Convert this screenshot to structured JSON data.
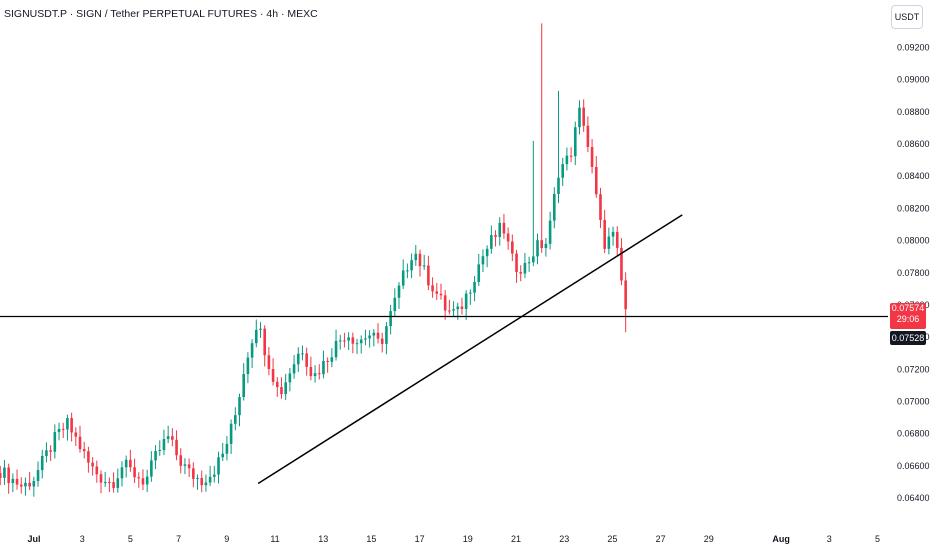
{
  "header": {
    "title": "SIGNUSDT.P · SIGN / Tether PERPETUAL FUTURES · 4h · MEXC",
    "currency": "USDT"
  },
  "price_tags": {
    "current_price": "0.07574",
    "countdown": "29:06",
    "level_price": "0.07528"
  },
  "colors": {
    "up": "#089981",
    "down": "#f23645",
    "line": "#000000",
    "axis_text": "#131722"
  },
  "chart_data": {
    "type": "candlestick",
    "title": "SIGNUSDT.P · SIGN / Tether PERPETUAL FUTURES · 4h · MEXC",
    "y_axis_labels": [
      "0.09200",
      "0.09000",
      "0.08800",
      "0.08600",
      "0.08400",
      "0.08200",
      "0.08000",
      "0.07800",
      "0.07600",
      "0.07400",
      "0.07200",
      "0.07000",
      "0.06800",
      "0.06600",
      "0.06400"
    ],
    "ylim": [
      0.063,
      0.0935
    ],
    "x_axis_labels": [
      {
        "label": "Jul",
        "day": 0
      },
      {
        "label": "3",
        "day": 2
      },
      {
        "label": "5",
        "day": 4
      },
      {
        "label": "7",
        "day": 6
      },
      {
        "label": "9",
        "day": 8
      },
      {
        "label": "11",
        "day": 10
      },
      {
        "label": "13",
        "day": 12
      },
      {
        "label": "15",
        "day": 14
      },
      {
        "label": "17",
        "day": 16
      },
      {
        "label": "19",
        "day": 18
      },
      {
        "label": "21",
        "day": 20
      },
      {
        "label": "23",
        "day": 22
      },
      {
        "label": "25",
        "day": 24
      },
      {
        "label": "27",
        "day": 26
      },
      {
        "label": "29",
        "day": 28
      },
      {
        "label": "Aug",
        "day": 31
      },
      {
        "label": "3",
        "day": 33
      },
      {
        "label": "5",
        "day": 35
      }
    ],
    "candle_anchors": [
      [
        "Jul 1",
        "0.0657"
      ],
      [
        "Jul 1",
        "0.0652"
      ],
      [
        "Jul 2",
        "0.0647"
      ],
      [
        "Jul 2",
        "0.0652"
      ],
      [
        "Jul 2",
        "0.0665"
      ],
      [
        "Jul 3",
        "0.0678"
      ],
      [
        "Jul 3",
        "0.0686"
      ],
      [
        "Jul 3",
        "0.0674"
      ],
      [
        "Jul 4",
        "0.0660"
      ],
      [
        "Jul 4",
        "0.0653"
      ],
      [
        "Jul 5",
        "0.0649"
      ],
      [
        "Jul 5",
        "0.0661"
      ],
      [
        "Jul 6",
        "0.0655"
      ],
      [
        "Jul 6",
        "0.0650"
      ],
      [
        "Jul 7",
        "0.0667"
      ],
      [
        "Jul 7",
        "0.0678"
      ],
      [
        "Jul 8",
        "0.0664"
      ],
      [
        "Jul 8",
        "0.0655"
      ],
      [
        "Jul 9",
        "0.0651"
      ],
      [
        "Jul 9",
        "0.0656"
      ],
      [
        "Jul 10",
        "0.0668"
      ],
      [
        "Jul 10",
        "0.0690"
      ],
      [
        "Jul 11",
        "0.0726"
      ],
      [
        "Jul 11",
        "0.0750"
      ],
      [
        "Jul 12",
        "0.0725"
      ],
      [
        "Jul 12",
        "0.0704"
      ],
      [
        "Jul 13",
        "0.0720"
      ],
      [
        "Jul 13",
        "0.0734"
      ],
      [
        "Jul 14",
        "0.0715"
      ],
      [
        "Jul 14",
        "0.0724"
      ],
      [
        "Jul 15",
        "0.0735"
      ],
      [
        "Jul 15",
        "0.0743"
      ],
      [
        "Jul 16",
        "0.0737"
      ],
      [
        "Jul 16",
        "0.0742"
      ],
      [
        "Jul 17",
        "0.0735"
      ],
      [
        "Jul 17",
        "0.0755"
      ],
      [
        "Jul 18",
        "0.0776"
      ],
      [
        "Jul 18",
        "0.0795"
      ],
      [
        "Jul 18",
        "0.0780"
      ],
      [
        "Jul 19",
        "0.0768"
      ],
      [
        "Jul 19",
        "0.0756"
      ],
      [
        "Jul 20",
        "0.0755"
      ],
      [
        "Jul 20",
        "0.0770"
      ],
      [
        "Jul 21",
        "0.0788"
      ],
      [
        "Jul 21",
        "0.0800"
      ],
      [
        "Jul 22",
        "0.0809"
      ],
      [
        "Jul 22",
        "0.0784"
      ],
      [
        "Jul 22",
        "0.0784"
      ],
      [
        "Jul 23",
        "0.0796"
      ],
      [
        "Jul 23",
        "0.0799"
      ],
      [
        "Jul 23",
        "0.0844"
      ],
      [
        "Jul 24",
        "0.0852"
      ],
      [
        "Jul 24",
        "0.0884"
      ],
      [
        "Jul 24",
        "0.0843"
      ],
      [
        "Jul 25",
        "0.0798"
      ],
      [
        "Jul 25",
        "0.0803"
      ],
      [
        "Jul 25",
        "0.0757"
      ]
    ],
    "horizontal_line": {
      "price": 0.07528
    },
    "trendline": {
      "start": {
        "day": 9.3,
        "price": 0.0649
      },
      "end": {
        "day": 26.9,
        "price": 0.0816
      }
    },
    "price_axis_position": "right",
    "grid": false,
    "legend": "none"
  }
}
